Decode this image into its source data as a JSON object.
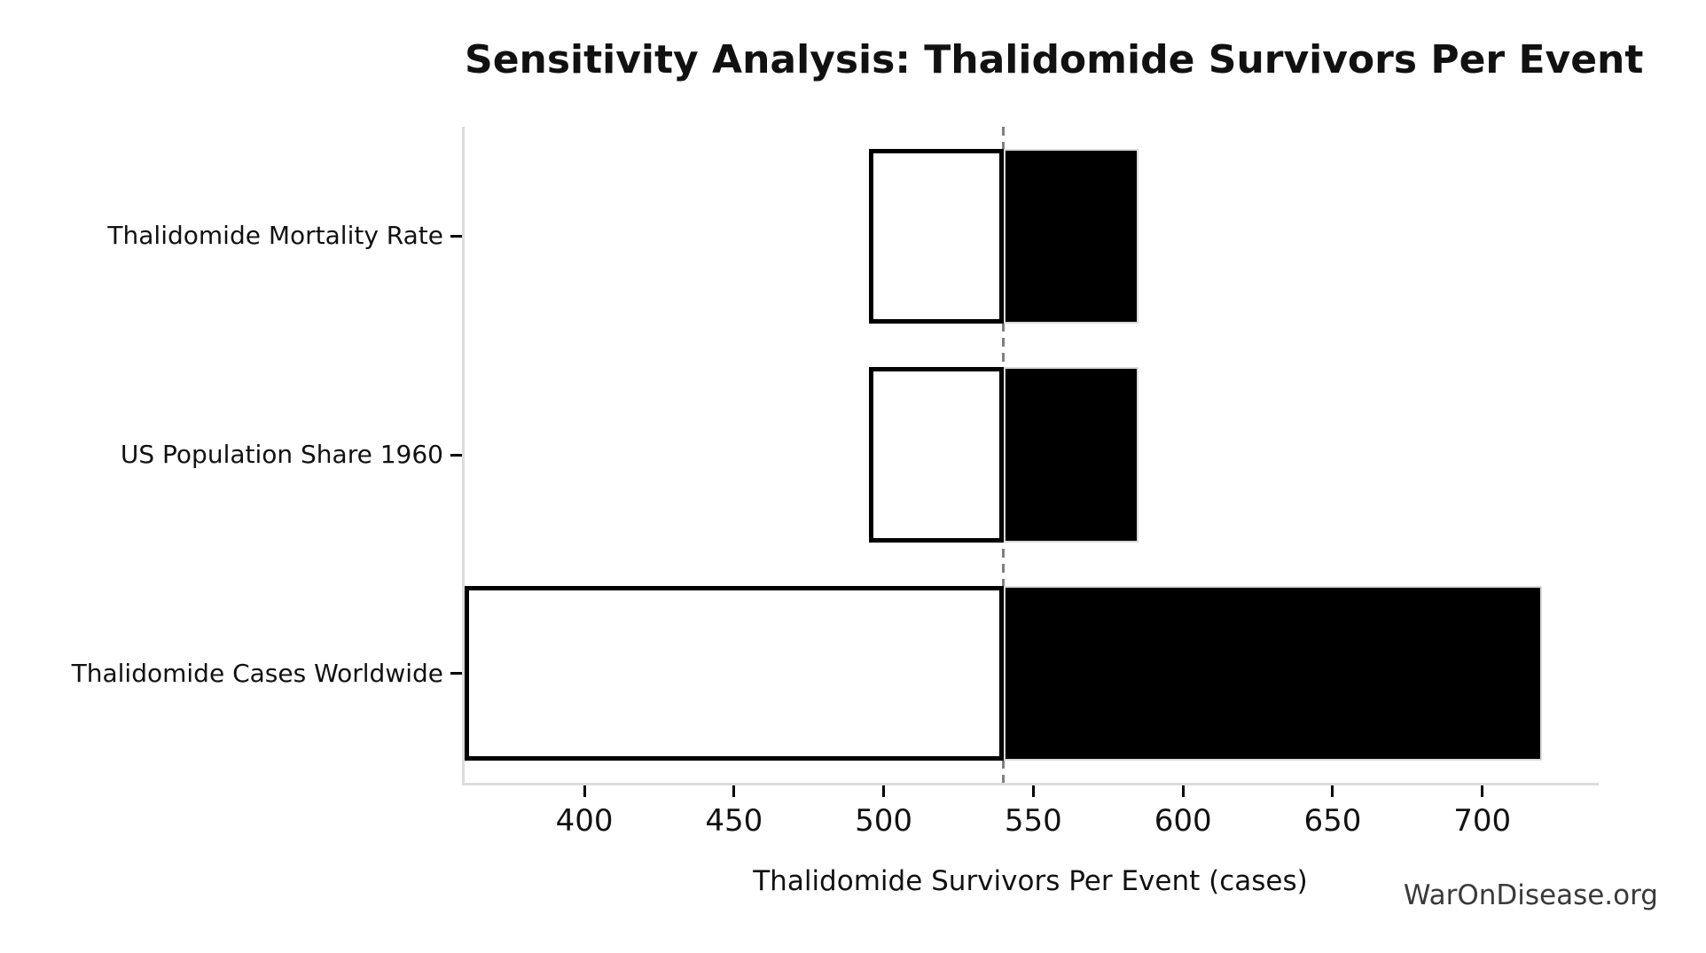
{
  "figure": {
    "watermark": "WarOnDisease.org"
  },
  "chart_data": {
    "type": "bar",
    "subtype": "tornado-horizontal",
    "title": "Sensitivity Analysis: Thalidomide Survivors Per Event",
    "xlabel": "Thalidomide Survivors Per Event (cases)",
    "ylabel": "",
    "categories": [
      "Thalidomide Mortality Rate",
      "US Population Share 1960",
      "Thalidomide Cases Worldwide"
    ],
    "baseline": 540,
    "series": [
      {
        "name": "low",
        "values": [
          495,
          495,
          360
        ]
      },
      {
        "name": "high",
        "values": [
          585,
          585,
          720
        ]
      }
    ],
    "xticks": [
      400,
      450,
      500,
      550,
      600,
      650,
      700
    ],
    "xlim": [
      360,
      738
    ],
    "grid": false,
    "legend": "none",
    "colors": {
      "low_fill": "#ffffff",
      "low_edge": "#000000",
      "high_fill": "#000000",
      "high_edge": "#d9d9d9",
      "baseline_line": "#808080",
      "spine": "#dcdcdc",
      "text": "#111111",
      "watermark_text": "#3a3a3a"
    }
  }
}
